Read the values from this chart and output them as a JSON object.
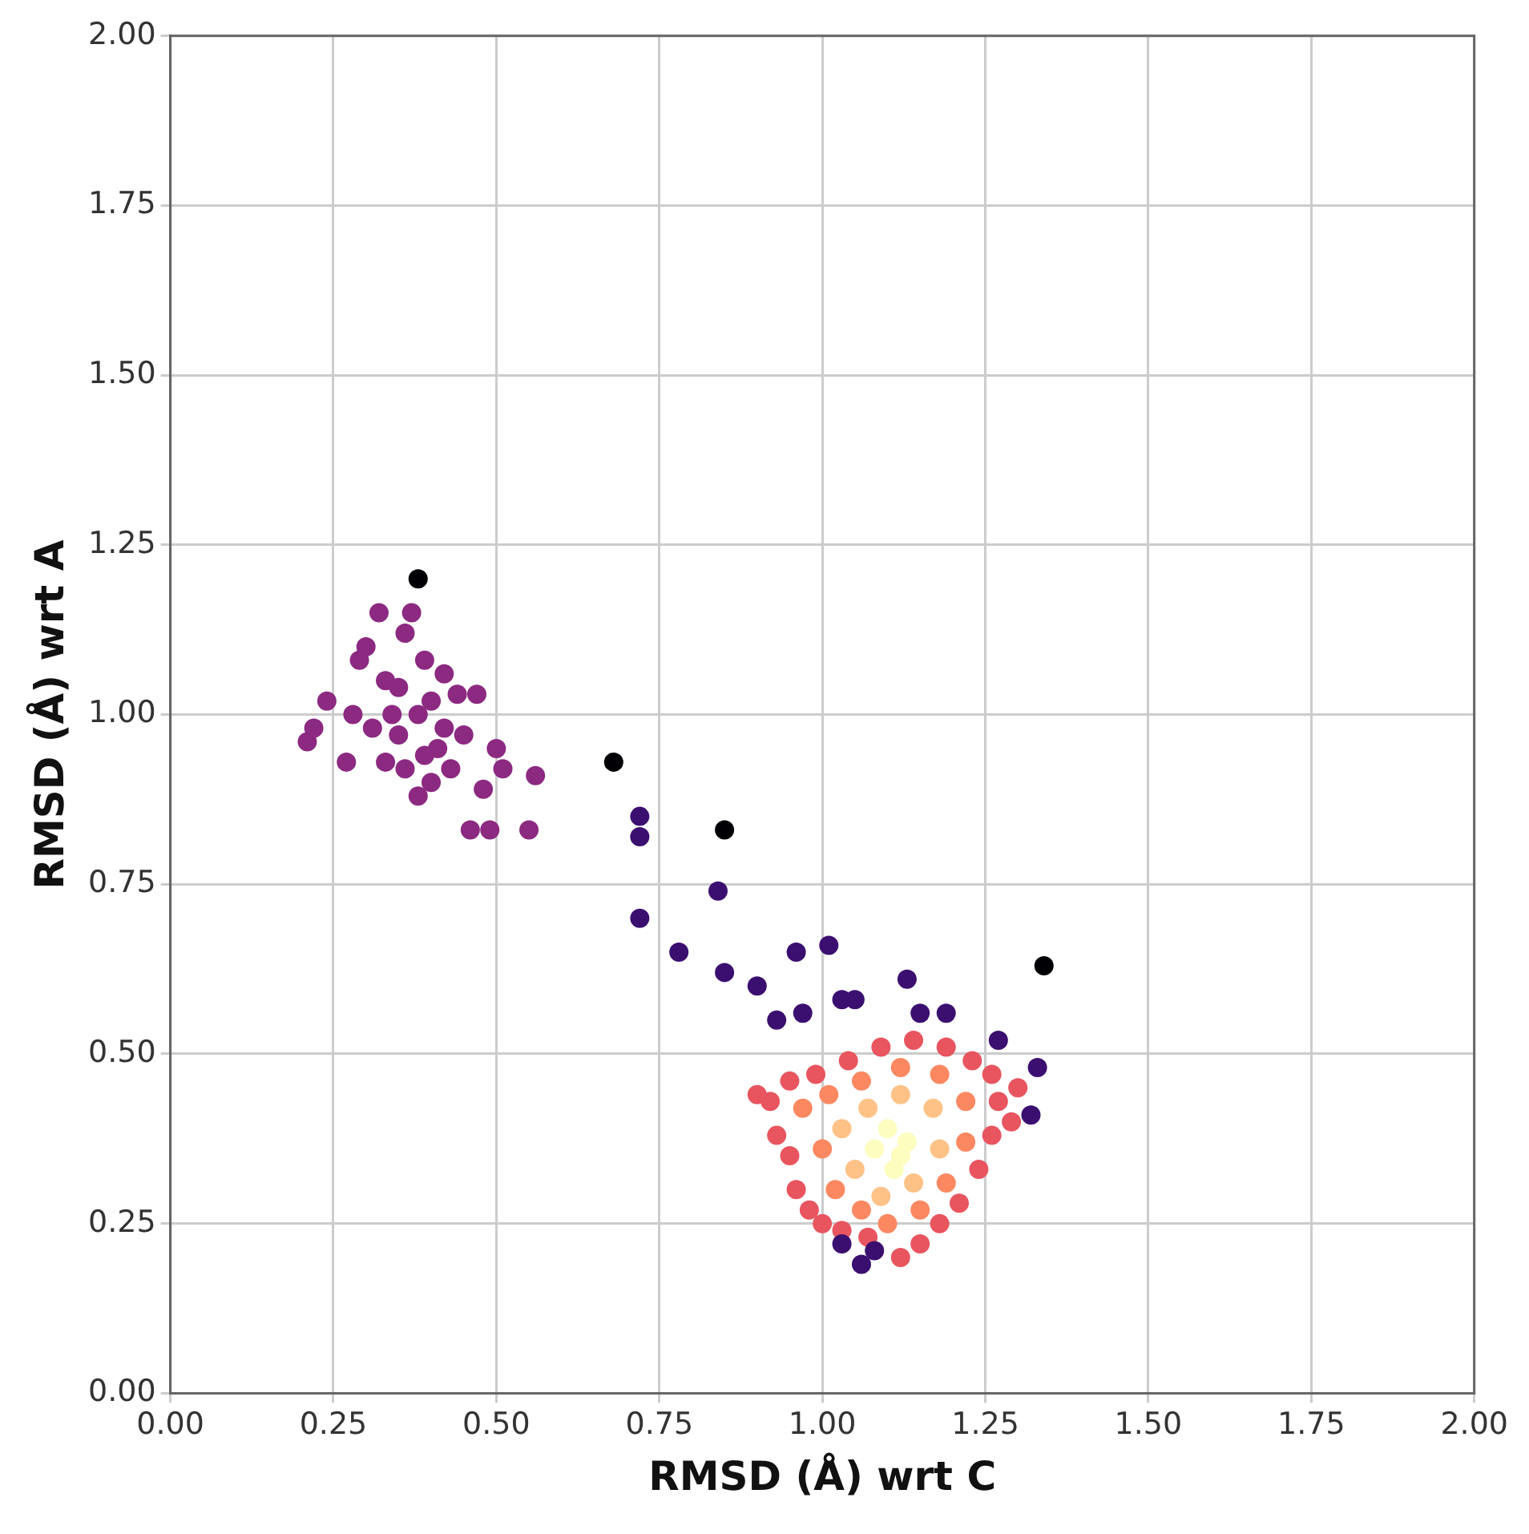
{
  "chart_data": {
    "type": "scatter",
    "xlabel": "RMSD (Å) wrt C",
    "ylabel": "RMSD (Å) wrt A",
    "xlim": [
      0,
      2
    ],
    "ylim": [
      0,
      2
    ],
    "xticks": [
      {
        "value": 0,
        "label": "0.00"
      },
      {
        "value": 0.25,
        "label": "0.25"
      },
      {
        "value": 0.5,
        "label": "0.50"
      },
      {
        "value": 0.75,
        "label": "0.75"
      },
      {
        "value": 1,
        "label": "1.00"
      },
      {
        "value": 1.25,
        "label": "1.25"
      },
      {
        "value": 1.5,
        "label": "1.50"
      },
      {
        "value": 1.75,
        "label": "1.75"
      },
      {
        "value": 2,
        "label": "2.00"
      }
    ],
    "yticks": [
      {
        "value": 0,
        "label": "0.00"
      },
      {
        "value": 0.25,
        "label": "0.25"
      },
      {
        "value": 0.5,
        "label": "0.50"
      },
      {
        "value": 0.75,
        "label": "0.75"
      },
      {
        "value": 1,
        "label": "1.00"
      },
      {
        "value": 1.25,
        "label": "1.25"
      },
      {
        "value": 1.5,
        "label": "1.50"
      },
      {
        "value": 1.75,
        "label": "1.75"
      },
      {
        "value": 2,
        "label": "2.00"
      }
    ],
    "grid": true,
    "marker": "circle",
    "series": [
      {
        "color": "#8c2981",
        "x": [
          0.21,
          0.22,
          0.24,
          0.27,
          0.28,
          0.29,
          0.3,
          0.32,
          0.33,
          0.34,
          0.35,
          0.36,
          0.37,
          0.38,
          0.39,
          0.4,
          0.41,
          0.42,
          0.43,
          0.44,
          0.45,
          0.46,
          0.47,
          0.48,
          0.49,
          0.5,
          0.51,
          0.55,
          0.56,
          0.31,
          0.33,
          0.36,
          0.39,
          0.4,
          0.42,
          0.38,
          0.35
        ],
        "values": [
          0.96,
          0.98,
          1.02,
          0.93,
          1.0,
          1.08,
          1.1,
          1.15,
          1.05,
          1.0,
          0.97,
          1.12,
          1.15,
          0.88,
          1.08,
          1.02,
          0.95,
          0.98,
          0.92,
          1.03,
          0.97,
          0.83,
          1.03,
          0.89,
          0.83,
          0.95,
          0.92,
          0.83,
          0.91,
          0.98,
          0.93,
          0.92,
          0.94,
          0.9,
          1.06,
          1.0,
          1.04
        ]
      },
      {
        "color": "#3b0f70",
        "x": [
          0.72,
          0.72,
          0.72,
          0.78,
          0.84,
          0.85,
          0.9,
          0.93,
          0.96,
          0.97,
          1.01,
          1.03,
          1.05,
          1.13,
          1.15,
          1.19,
          1.27,
          1.33,
          1.32,
          1.03,
          1.06,
          1.08
        ],
        "values": [
          0.85,
          0.82,
          0.7,
          0.65,
          0.74,
          0.62,
          0.6,
          0.55,
          0.65,
          0.56,
          0.66,
          0.58,
          0.58,
          0.61,
          0.56,
          0.56,
          0.52,
          0.48,
          0.41,
          0.22,
          0.19,
          0.21
        ]
      },
      {
        "color": "#000004",
        "x": [
          0.38,
          0.68,
          0.85,
          1.34
        ],
        "values": [
          1.2,
          0.93,
          0.83,
          0.63
        ]
      },
      {
        "color": "#e8555f",
        "x": [
          0.9,
          0.92,
          0.93,
          0.95,
          0.96,
          0.98,
          1.0,
          1.03,
          1.07,
          1.12,
          1.15,
          1.18,
          1.21,
          1.24,
          1.26,
          1.27,
          1.26,
          1.23,
          1.19,
          1.14,
          1.09,
          1.04,
          0.99,
          0.95,
          1.29,
          1.3
        ],
        "values": [
          0.44,
          0.43,
          0.38,
          0.35,
          0.3,
          0.27,
          0.25,
          0.24,
          0.23,
          0.2,
          0.22,
          0.25,
          0.28,
          0.33,
          0.38,
          0.43,
          0.47,
          0.49,
          0.51,
          0.52,
          0.51,
          0.49,
          0.47,
          0.46,
          0.4,
          0.45
        ]
      },
      {
        "color": "#fb8861",
        "x": [
          0.97,
          1.0,
          1.02,
          1.06,
          1.1,
          1.15,
          1.19,
          1.22,
          1.22,
          1.18,
          1.12,
          1.06,
          1.01
        ],
        "values": [
          0.42,
          0.36,
          0.3,
          0.27,
          0.25,
          0.27,
          0.31,
          0.37,
          0.43,
          0.47,
          0.48,
          0.46,
          0.44
        ]
      },
      {
        "color": "#fec287",
        "x": [
          1.03,
          1.05,
          1.09,
          1.14,
          1.18,
          1.17,
          1.12,
          1.07
        ],
        "values": [
          0.39,
          0.33,
          0.29,
          0.31,
          0.36,
          0.42,
          0.44,
          0.42
        ]
      },
      {
        "color": "#fcfdbf",
        "x": [
          1.08,
          1.11,
          1.13,
          1.1,
          1.12
        ],
        "values": [
          0.36,
          0.33,
          0.37,
          0.39,
          0.35
        ]
      }
    ]
  }
}
